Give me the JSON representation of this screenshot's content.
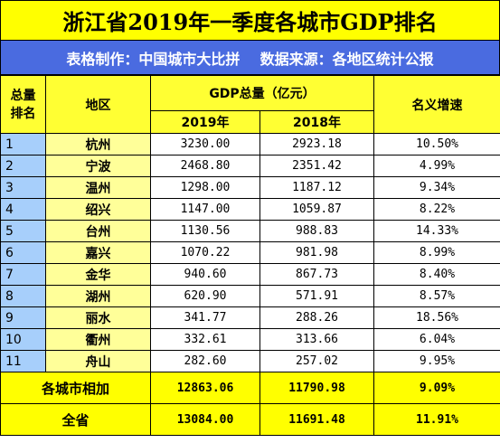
{
  "title": "浙江省2019年一季度各城市GDP排名",
  "subtitle": "表格制作：中国城市大比拼    数据来源：各地区统计公报",
  "headers": {
    "rank": "总量\n排名",
    "region": "地区",
    "gdp_group": "GDP总量（亿元）",
    "year_2019": "2019年",
    "year_2018": "2018年",
    "growth": "名义增速"
  },
  "rows": [
    {
      "rank": "1",
      "region": "杭州",
      "gdp2019": "3230.00",
      "gdp2018": "2923.18",
      "growth": "10.50%"
    },
    {
      "rank": "2",
      "region": "宁波",
      "gdp2019": "2468.80",
      "gdp2018": "2351.42",
      "growth": "4.99%"
    },
    {
      "rank": "3",
      "region": "温州",
      "gdp2019": "1298.00",
      "gdp2018": "1187.12",
      "growth": "9.34%"
    },
    {
      "rank": "4",
      "region": "绍兴",
      "gdp2019": "1147.00",
      "gdp2018": "1059.87",
      "growth": "8.22%"
    },
    {
      "rank": "5",
      "region": "台州",
      "gdp2019": "1130.56",
      "gdp2018": "988.83",
      "growth": "14.33%"
    },
    {
      "rank": "6",
      "region": "嘉兴",
      "gdp2019": "1070.22",
      "gdp2018": "981.98",
      "growth": "8.99%"
    },
    {
      "rank": "7",
      "region": "金华",
      "gdp2019": "940.60",
      "gdp2018": "867.73",
      "growth": "8.40%"
    },
    {
      "rank": "8",
      "region": "湖州",
      "gdp2019": "620.90",
      "gdp2018": "571.91",
      "growth": "8.57%"
    },
    {
      "rank": "9",
      "region": "丽水",
      "gdp2019": "341.77",
      "gdp2018": "288.26",
      "growth": "18.56%"
    },
    {
      "rank": "10",
      "region": "衢州",
      "gdp2019": "332.61",
      "gdp2018": "313.66",
      "growth": "6.04%"
    },
    {
      "rank": "11",
      "region": "舟山",
      "gdp2019": "282.60",
      "gdp2018": "257.02",
      "growth": "9.95%"
    }
  ],
  "totals": [
    {
      "label": "各城市相加",
      "gdp2019": "12863.06",
      "gdp2018": "11790.98",
      "growth": "9.09%"
    },
    {
      "label": "全省",
      "gdp2019": "13084.00",
      "gdp2018": "11691.48",
      "growth": "11.91%"
    }
  ],
  "colors": {
    "title_bg": "#ffff00",
    "subtitle_bg": "#4a6be0",
    "rank_bg": "#a7cffb",
    "region_bg": "#ffff99"
  }
}
